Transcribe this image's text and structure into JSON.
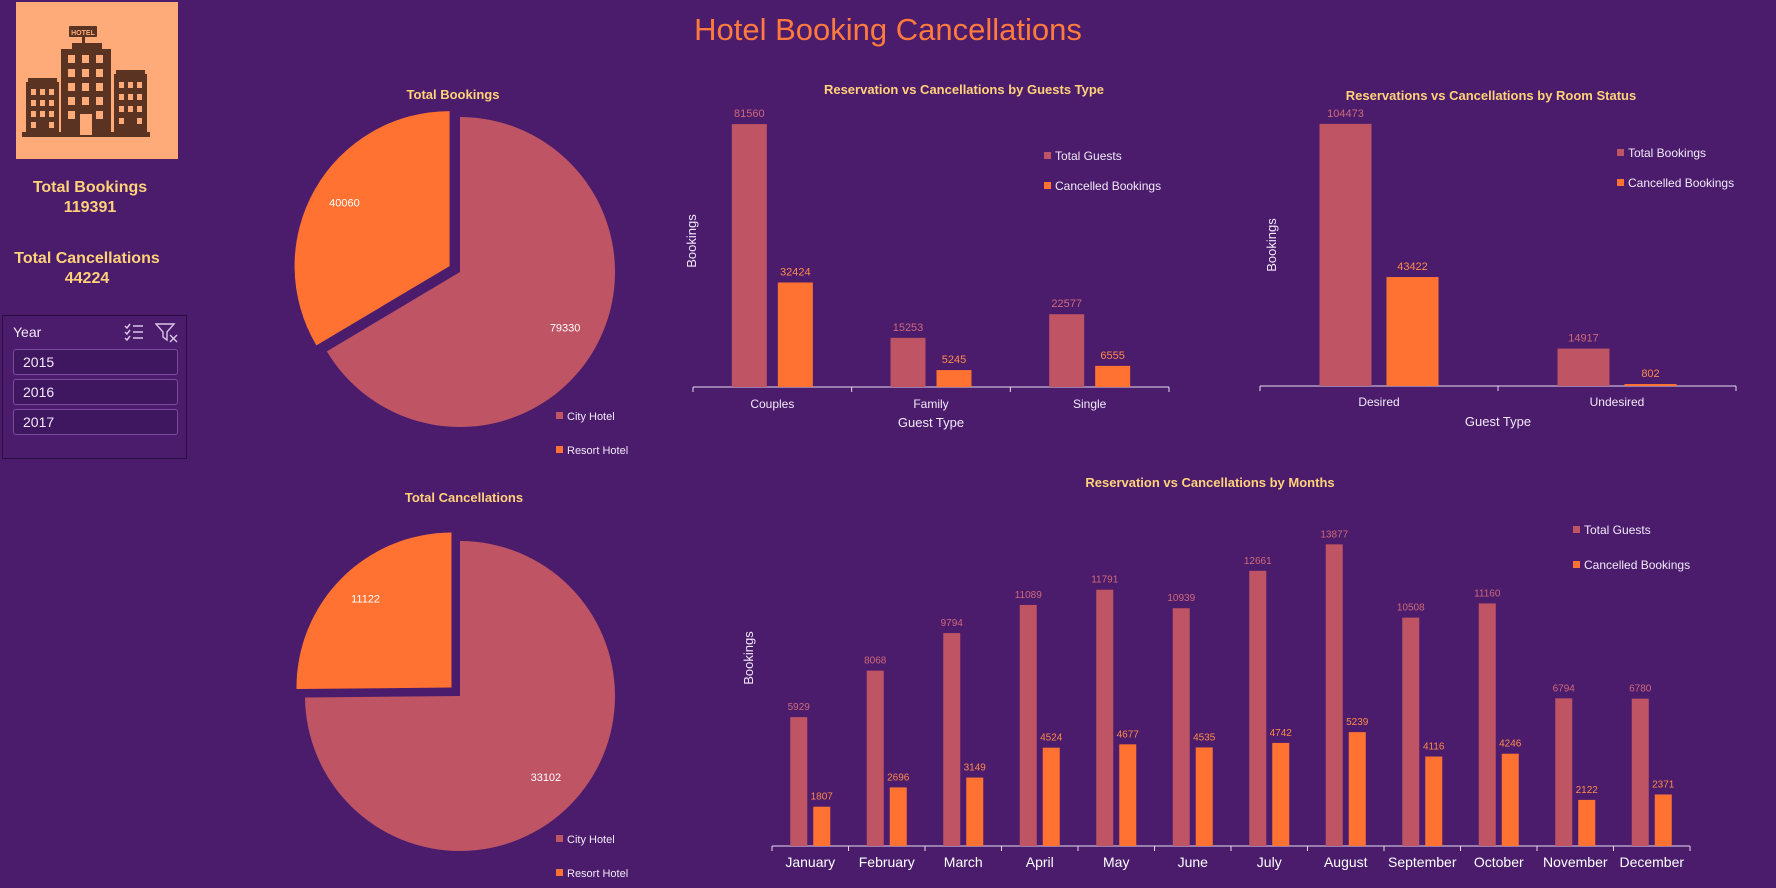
{
  "dashboard": {
    "title": "Hotel Booking Cancellations"
  },
  "kpis": {
    "total_bookings_label": "Total Bookings",
    "total_bookings_value": "119391",
    "total_cancellations_label": "Total Cancellations",
    "total_cancellations_value": "44224"
  },
  "slicer": {
    "title": "Year",
    "items": [
      "2015",
      "2016",
      "2017"
    ],
    "icons": [
      "multi-select-icon",
      "clear-filter-icon"
    ]
  },
  "colors": {
    "background": "#4a1c6b",
    "city": "#bf5464",
    "resort": "#ff7232",
    "title": "#ff7a3c",
    "chart_title": "#ffd27a"
  },
  "chart_data": [
    {
      "id": "pie-bookings",
      "type": "pie",
      "title": "Total Bookings",
      "labels": [
        "City Hotel",
        "Resort Hotel"
      ],
      "values": [
        79330,
        40060
      ],
      "legend": "bottom-right"
    },
    {
      "id": "pie-cancellations",
      "type": "pie",
      "title": "Total Cancellations",
      "labels": [
        "City Hotel",
        "Resort Hotel"
      ],
      "values": [
        33102,
        11122
      ],
      "legend": "bottom-right"
    },
    {
      "id": "bar-guests",
      "type": "bar",
      "title": "Reservation vs Cancellations by Guests Type",
      "xlabel": "Guest Type",
      "ylabel": "Bookings",
      "categories": [
        "Couples",
        "Family",
        "Single"
      ],
      "series": [
        {
          "name": "Total Guests",
          "values": [
            81560,
            15253,
            22577
          ]
        },
        {
          "name": "Cancelled Bookings",
          "values": [
            32424,
            5245,
            6555
          ]
        }
      ],
      "ylim": [
        0,
        85000
      ],
      "legend": "top-right"
    },
    {
      "id": "bar-room",
      "type": "bar",
      "title": "Reservations vs Cancellations by Room Status",
      "xlabel": "Guest Type",
      "ylabel": "Bookings",
      "categories": [
        "Desired",
        "Undesired"
      ],
      "series": [
        {
          "name": "Total Bookings",
          "values": [
            104473,
            14917
          ]
        },
        {
          "name": "Cancelled Bookings",
          "values": [
            43422,
            802
          ]
        }
      ],
      "ylim": [
        0,
        108000
      ],
      "legend": "top-right"
    },
    {
      "id": "bar-months",
      "type": "bar",
      "title": "Reservation vs Cancellations by Months",
      "xlabel": "",
      "ylabel": "Bookings",
      "categories": [
        "January",
        "February",
        "March",
        "April",
        "May",
        "June",
        "July",
        "August",
        "September",
        "October",
        "November",
        "December"
      ],
      "series": [
        {
          "name": "Total Guests",
          "values": [
            5929,
            8068,
            9794,
            11089,
            11791,
            10939,
            12661,
            13877,
            10508,
            11160,
            6794,
            6780
          ]
        },
        {
          "name": "Cancelled Bookings",
          "values": [
            1807,
            2696,
            3149,
            4524,
            4677,
            4535,
            4742,
            5239,
            4116,
            4246,
            2122,
            2371
          ]
        }
      ],
      "ylim": [
        0,
        14400
      ],
      "legend": "top-right"
    }
  ]
}
